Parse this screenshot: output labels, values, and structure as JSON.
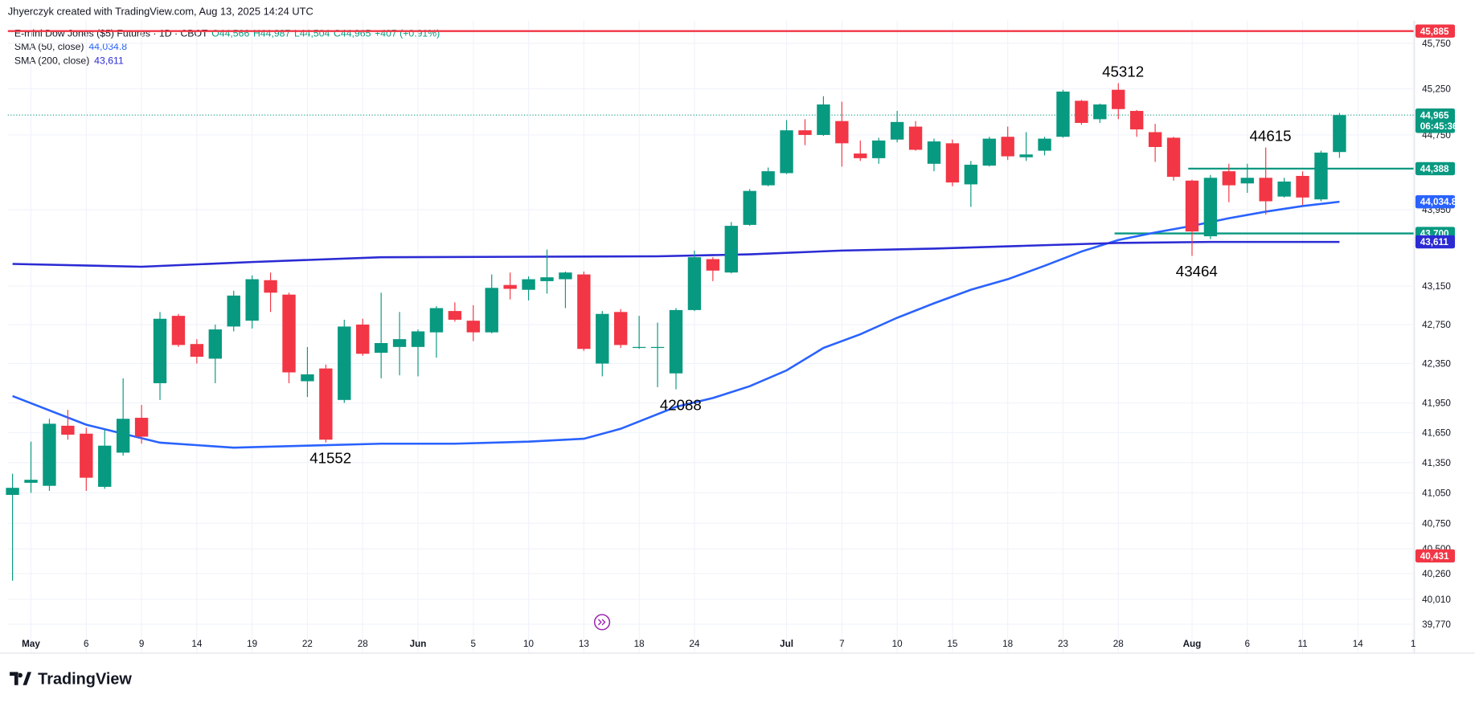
{
  "chart_data": {
    "type": "candlestick",
    "credit": "Jhyerczyk created with TradingView.com, Aug 13, 2025 14:24 UTC",
    "title": "E-mini Dow Jones ($5) Futures · 1D · CBOT",
    "ohlc_header": [
      "O44,566",
      "H44,987",
      "L44,504",
      "C44,965",
      "+407 (+0.91%)"
    ],
    "brand": "TradingView",
    "up_color": "#089981",
    "down_color": "#f23645",
    "log": true,
    "grid": true,
    "ylim": [
      39700,
      46000
    ],
    "yticks": [
      {
        "value": 45750,
        "label": "45,750"
      },
      {
        "value": 45250,
        "label": "45,250"
      },
      {
        "value": 44750,
        "label": "44,750"
      },
      {
        "value": 43950,
        "label": "43,950"
      },
      {
        "value": 43150,
        "label": "43,150"
      },
      {
        "value": 42750,
        "label": "42,750"
      },
      {
        "value": 42350,
        "label": "42,350"
      },
      {
        "value": 41950,
        "label": "41,950"
      },
      {
        "value": 41650,
        "label": "41,650"
      },
      {
        "value": 41350,
        "label": "41,350"
      },
      {
        "value": 41050,
        "label": "41,050"
      },
      {
        "value": 40750,
        "label": "40,750"
      },
      {
        "value": 40500,
        "label": "40,500"
      },
      {
        "value": 40260,
        "label": "40,260"
      },
      {
        "value": 40010,
        "label": "40,010"
      },
      {
        "value": 39770,
        "label": "39,770"
      }
    ],
    "xticks": [
      {
        "value": 1,
        "label": "May"
      },
      {
        "value": 4,
        "label": "6"
      },
      {
        "value": 7,
        "label": "9"
      },
      {
        "value": 10,
        "label": "14"
      },
      {
        "value": 13,
        "label": "19"
      },
      {
        "value": 16,
        "label": "22"
      },
      {
        "value": 19,
        "label": "28"
      },
      {
        "value": 22,
        "label": "Jun"
      },
      {
        "value": 25,
        "label": "5"
      },
      {
        "value": 28,
        "label": "10"
      },
      {
        "value": 31,
        "label": "13"
      },
      {
        "value": 34,
        "label": "18"
      },
      {
        "value": 37,
        "label": "24"
      },
      {
        "value": 42,
        "label": "Jul"
      },
      {
        "value": 45,
        "label": "7"
      },
      {
        "value": 48,
        "label": "10"
      },
      {
        "value": 51,
        "label": "15"
      },
      {
        "value": 54,
        "label": "18"
      },
      {
        "value": 57,
        "label": "23"
      },
      {
        "value": 60,
        "label": "28"
      },
      {
        "value": 64,
        "label": "Aug"
      },
      {
        "value": 67,
        "label": "6"
      },
      {
        "value": 70,
        "label": "11"
      },
      {
        "value": 73,
        "label": "14"
      },
      {
        "value": 76,
        "label": "1"
      }
    ],
    "open": [
      41030,
      41150,
      41120,
      41720,
      41640,
      41110,
      41450,
      41800,
      42150,
      42840,
      42550,
      42400,
      42730,
      42790,
      43210,
      43060,
      42170,
      42300,
      41980,
      42750,
      42460,
      42520,
      42520,
      42670,
      42890,
      42790,
      42670,
      43160,
      43110,
      43200,
      43220,
      43270,
      42350,
      42880,
      42510,
      42510,
      42250,
      42900,
      43430,
      43290,
      43790,
      44210,
      44340,
      44800,
      44750,
      44900,
      44550,
      44500,
      44700,
      44840,
      44440,
      44660,
      44220,
      44420,
      44730,
      44510,
      44580,
      44730,
      45120,
      44920,
      45240,
      45010,
      44780,
      44720,
      44260,
      43670,
      44360,
      44230,
      44290,
      44090,
      44310,
      44060,
      44566
    ],
    "high": [
      41240,
      41560,
      41790,
      41880,
      41700,
      41680,
      42200,
      41930,
      42880,
      42860,
      42600,
      42750,
      43100,
      43260,
      43290,
      43080,
      42520,
      42340,
      42800,
      42810,
      43080,
      42880,
      42700,
      42940,
      42980,
      42950,
      43270,
      43290,
      43250,
      43530,
      43300,
      43300,
      42890,
      42910,
      42840,
      42770,
      42920,
      43520,
      43450,
      43820,
      44170,
      44400,
      44910,
      44920,
      45170,
      45110,
      44690,
      44720,
      45010,
      44900,
      44710,
      44700,
      44470,
      44730,
      44840,
      44780,
      44730,
      45240,
      45130,
      45090,
      45312,
      45020,
      44870,
      44730,
      44270,
      44320,
      44440,
      44440,
      44615,
      44290,
      44360,
      44580,
      44987
    ],
    "low": [
      40190,
      41050,
      41070,
      41580,
      41070,
      41090,
      41420,
      41540,
      41980,
      42520,
      42350,
      42150,
      42680,
      42710,
      42880,
      42150,
      42010,
      41552,
      41950,
      42430,
      42200,
      42230,
      42220,
      42410,
      42780,
      42580,
      42660,
      43010,
      43000,
      43070,
      42920,
      42480,
      42220,
      42510,
      42500,
      42110,
      42088,
      42890,
      43200,
      43280,
      43780,
      44200,
      44330,
      44640,
      44740,
      44410,
      44470,
      44440,
      44670,
      44580,
      44360,
      44200,
      43980,
      44410,
      44480,
      44470,
      44530,
      44720,
      44860,
      44880,
      44920,
      44730,
      44460,
      44260,
      43464,
      43640,
      44030,
      44130,
      43900,
      44080,
      44000,
      44040,
      44504
    ],
    "close": [
      41100,
      41180,
      41740,
      41630,
      41200,
      41520,
      41790,
      41610,
      42810,
      42540,
      42420,
      42700,
      43050,
      43220,
      43080,
      42260,
      42240,
      41580,
      42730,
      42450,
      42560,
      42600,
      42680,
      42920,
      42800,
      42670,
      43130,
      43120,
      43220,
      43240,
      43290,
      42500,
      42860,
      42540,
      42520,
      42520,
      42900,
      43450,
      43310,
      43780,
      44150,
      44360,
      44800,
      44750,
      45080,
      44660,
      44500,
      44690,
      44890,
      44590,
      44680,
      44240,
      44430,
      44710,
      44520,
      44540,
      44710,
      45220,
      44880,
      45080,
      45030,
      44810,
      44620,
      44300,
      43720,
      44290,
      44210,
      44290,
      44040,
      44250,
      44080,
      44560,
      44965
    ],
    "series": [
      {
        "name": "SMA (50, close)",
        "last_label": "44,034.8",
        "color": "#2962ff",
        "x": [
          0,
          4,
          8,
          12,
          16,
          20,
          24,
          28,
          31,
          33,
          36,
          38,
          40,
          42,
          44,
          46,
          48,
          50,
          52,
          54,
          56,
          58,
          60,
          62,
          64,
          66,
          68,
          70,
          72
        ],
        "values": [
          42020,
          41730,
          41550,
          41500,
          41520,
          41540,
          41540,
          41560,
          41590,
          41690,
          41910,
          42000,
          42120,
          42280,
          42510,
          42650,
          42820,
          42970,
          43110,
          43220,
          43360,
          43510,
          43630,
          43710,
          43780,
          43860,
          43930,
          43990,
          44034.8
        ]
      },
      {
        "name": "SMA (200, close)",
        "last_label": "43,611",
        "color": "#2b2bd4",
        "x": [
          0,
          7,
          13,
          20,
          35,
          40,
          45,
          50,
          55,
          60,
          65,
          72
        ],
        "values": [
          43380,
          43350,
          43400,
          43450,
          43460,
          43480,
          43520,
          43540,
          43570,
          43600,
          43611,
          43611
        ]
      }
    ],
    "levels": [
      {
        "value": 45885,
        "color": "#f23645"
      },
      {
        "value": 44965,
        "color": "#089981",
        "style": "dotted"
      },
      {
        "value": 44388,
        "color": "#089981",
        "start": 64
      },
      {
        "value": 43700,
        "color": "#089981",
        "start": 60
      }
    ],
    "price_labels": [
      {
        "value": 45885,
        "label": "45,885",
        "color": "#f23645"
      },
      {
        "value": 44965,
        "label": "44,965",
        "countdown": "06:45:36",
        "color": "#089981"
      },
      {
        "value": 44388,
        "label": "44,388",
        "color": "#089981"
      },
      {
        "value": 44034.8,
        "label": "44,034.8",
        "color": "#2962ff"
      },
      {
        "value": 43700,
        "label": "43,700",
        "color": "#089981"
      },
      {
        "value": 43611,
        "label": "43,611",
        "color": "#2b2bd4"
      },
      {
        "value": 40431,
        "label": "40,431",
        "color": "#f23645"
      }
    ],
    "annotations": [
      "45312",
      "44615",
      "43464",
      "42088",
      "41552"
    ]
  }
}
